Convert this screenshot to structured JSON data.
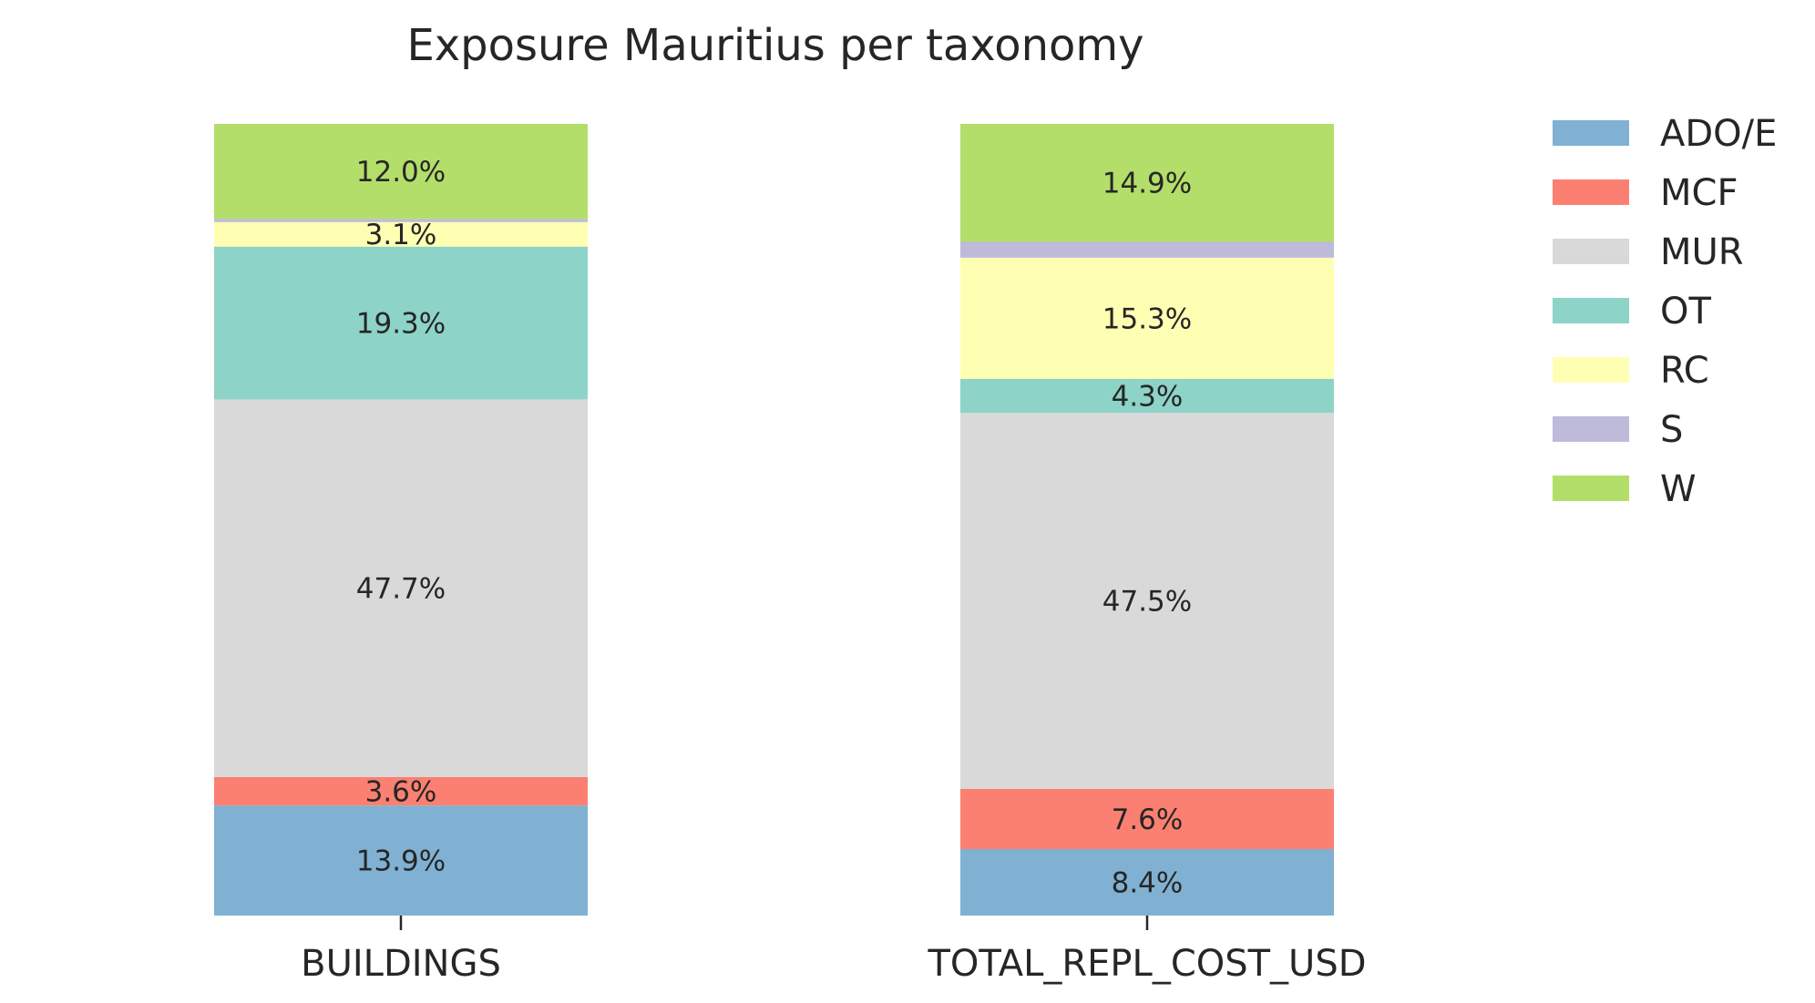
{
  "chart_data": {
    "type": "bar",
    "stacked": true,
    "normalized": true,
    "title": "Exposure Mauritius per taxonomy",
    "xlabel": "",
    "ylabel": "",
    "ylim": [
      0,
      100
    ],
    "grid": false,
    "legend_position": "top-right outside",
    "categories": [
      "BUILDINGS",
      "TOTAL_REPL_COST_USD"
    ],
    "series": [
      {
        "name": "ADO/E",
        "color": "#80b1d3",
        "values": [
          13.9,
          8.4
        ]
      },
      {
        "name": "MCF",
        "color": "#fb8072",
        "values": [
          3.6,
          7.6
        ]
      },
      {
        "name": "MUR",
        "color": "#d9d9d9",
        "values": [
          47.7,
          47.5
        ]
      },
      {
        "name": "OT",
        "color": "#8dd3c7",
        "values": [
          19.3,
          4.3
        ]
      },
      {
        "name": "RC",
        "color": "#ffffb3",
        "values": [
          3.1,
          15.3
        ]
      },
      {
        "name": "S",
        "color": "#bebada",
        "values": [
          0.4,
          2.0
        ]
      },
      {
        "name": "W",
        "color": "#b3de69",
        "values": [
          12.0,
          14.9
        ]
      }
    ],
    "data_labels": [
      [
        "13.9%",
        "8.4%"
      ],
      [
        "3.6%",
        "7.6%"
      ],
      [
        "47.7%",
        "47.5%"
      ],
      [
        "19.3%",
        "4.3%"
      ],
      [
        "3.1%",
        "15.3%"
      ],
      [
        "",
        ""
      ],
      [
        "12.0%",
        "14.9%"
      ]
    ]
  }
}
